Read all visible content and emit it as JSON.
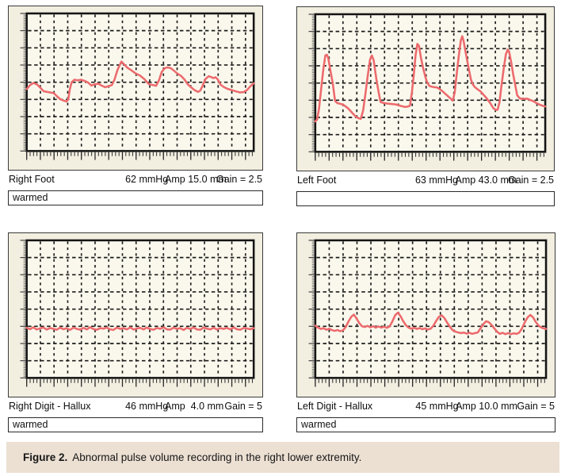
{
  "figure": {
    "caption_label": "Figure 2.",
    "caption_text": "Abnormal pulse volume recording in the right lower extremity.",
    "caption_bg": "#ece0d3"
  },
  "colors": {
    "trace": "#ec6a6d",
    "panel_bg": "#f2efe1",
    "plot_bg": "#faf8ec",
    "grid": "#1c1c1c"
  },
  "chart_data": [
    {
      "type": "line",
      "id": "right-foot",
      "title": "Right Foot",
      "readings": {
        "pressure": "62 mmHg",
        "amp": "Amp 15.0 mm",
        "gain": "Gain = 2.5"
      },
      "note": "warmed",
      "grid": {
        "v_divisions": 16,
        "h_divisions": 8,
        "style": "dashed"
      },
      "units": {
        "x": "percent of sweep width",
        "y": "percent of plot height from top"
      },
      "points": [
        [
          0,
          55
        ],
        [
          1.5,
          52
        ],
        [
          3,
          50.5
        ],
        [
          4.5,
          51.5
        ],
        [
          6,
          54
        ],
        [
          7.5,
          56.5
        ],
        [
          9,
          57
        ],
        [
          10.5,
          57.5
        ],
        [
          12,
          58
        ],
        [
          13.5,
          60.5
        ],
        [
          15,
          62.5
        ],
        [
          16.5,
          63.5
        ],
        [
          17.5,
          64
        ],
        [
          18.3,
          62.5
        ],
        [
          19,
          55
        ],
        [
          19.8,
          50
        ],
        [
          21,
          48.2
        ],
        [
          22.5,
          48.6
        ],
        [
          24,
          48.2
        ],
        [
          25.5,
          49
        ],
        [
          27,
          50.2
        ],
        [
          28.5,
          52.4
        ],
        [
          30,
          51.6
        ],
        [
          31.5,
          51
        ],
        [
          33,
          52.4
        ],
        [
          34.5,
          53.6
        ],
        [
          36,
          53
        ],
        [
          37.5,
          52
        ],
        [
          38.7,
          48
        ],
        [
          40,
          41
        ],
        [
          41.7,
          35
        ],
        [
          43,
          37.2
        ],
        [
          44.5,
          39.6
        ],
        [
          46,
          41.2
        ],
        [
          48,
          43.6
        ],
        [
          50,
          45.2
        ],
        [
          52,
          48
        ],
        [
          53.8,
          51.4
        ],
        [
          55.5,
          52
        ],
        [
          57,
          52.6
        ],
        [
          58.3,
          48.5
        ],
        [
          59.5,
          42.5
        ],
        [
          60.8,
          39.8
        ],
        [
          62.1,
          39.2
        ],
        [
          63.5,
          39.8
        ],
        [
          65,
          41.8
        ],
        [
          66.5,
          43.8
        ],
        [
          68,
          45.4
        ],
        [
          69.5,
          48
        ],
        [
          71,
          51.6
        ],
        [
          72.5,
          53.8
        ],
        [
          74,
          55.8
        ],
        [
          75.5,
          57
        ],
        [
          76.5,
          56
        ],
        [
          77.5,
          52.6
        ],
        [
          78.8,
          47.6
        ],
        [
          80.2,
          45.6
        ],
        [
          81.2,
          46.2
        ],
        [
          82.2,
          47
        ],
        [
          83.2,
          46.4
        ],
        [
          84.2,
          48
        ],
        [
          85.4,
          51.8
        ],
        [
          86.8,
          53.4
        ],
        [
          88.2,
          54.6
        ],
        [
          89.6,
          55.4
        ],
        [
          91,
          56
        ],
        [
          92.5,
          56.8
        ],
        [
          94,
          57.4
        ],
        [
          95.5,
          57.2
        ],
        [
          97,
          55.8
        ],
        [
          98.5,
          53
        ],
        [
          100,
          50.8
        ]
      ]
    },
    {
      "type": "line",
      "id": "left-foot",
      "title": "Left Foot",
      "readings": {
        "pressure": "63 mmHg",
        "amp": "Amp 43.0 mm",
        "gain": "Gain = 2.5"
      },
      "note": "",
      "grid": {
        "v_divisions": 16,
        "h_divisions": 8,
        "style": "dashed"
      },
      "units": {
        "x": "percent of sweep width",
        "y": "percent of plot height from top"
      },
      "points": [
        [
          0,
          78
        ],
        [
          0.8,
          76.5
        ],
        [
          1.6,
          69
        ],
        [
          2.5,
          55
        ],
        [
          3.5,
          40
        ],
        [
          4.4,
          30
        ],
        [
          5,
          29.4
        ],
        [
          5.6,
          31.5
        ],
        [
          6.6,
          41
        ],
        [
          7.6,
          50
        ],
        [
          8.6,
          63
        ],
        [
          9.6,
          64.6
        ],
        [
          10.6,
          65
        ],
        [
          12,
          65.6
        ],
        [
          13.2,
          67
        ],
        [
          14.4,
          68.6
        ],
        [
          16,
          71.5
        ],
        [
          17.6,
          74.4
        ],
        [
          18.8,
          75.6
        ],
        [
          19.8,
          76
        ],
        [
          20.8,
          70
        ],
        [
          21.8,
          58
        ],
        [
          22.8,
          45
        ],
        [
          23.8,
          33
        ],
        [
          24.6,
          30
        ],
        [
          25.4,
          33.5
        ],
        [
          26.6,
          47.5
        ],
        [
          27.6,
          57
        ],
        [
          28.4,
          63.8
        ],
        [
          30,
          64.6
        ],
        [
          31.6,
          65
        ],
        [
          33.2,
          65.2
        ],
        [
          35.2,
          65.6
        ],
        [
          37,
          66.6
        ],
        [
          39.2,
          67.4
        ],
        [
          40.4,
          67
        ],
        [
          41.2,
          66.4
        ],
        [
          42,
          57
        ],
        [
          42.8,
          45
        ],
        [
          43.6,
          30
        ],
        [
          44.4,
          21.6
        ],
        [
          45.1,
          23
        ],
        [
          45.9,
          31
        ],
        [
          46.8,
          38.4
        ],
        [
          47.8,
          45
        ],
        [
          48.6,
          49.4
        ],
        [
          49.6,
          52
        ],
        [
          50.4,
          52.6
        ],
        [
          51.6,
          53
        ],
        [
          53,
          53.2
        ],
        [
          54.6,
          55
        ],
        [
          56,
          57
        ],
        [
          57.6,
          59.4
        ],
        [
          59,
          61.6
        ],
        [
          59.8,
          62.8
        ],
        [
          60.6,
          57
        ],
        [
          61.4,
          45
        ],
        [
          62.4,
          30
        ],
        [
          63.3,
          19
        ],
        [
          63.9,
          16
        ],
        [
          64.5,
          19.4
        ],
        [
          65.3,
          27
        ],
        [
          66,
          33
        ],
        [
          66.9,
          41
        ],
        [
          67.7,
          47.4
        ],
        [
          68.5,
          51
        ],
        [
          69.4,
          53
        ],
        [
          70.6,
          54.6
        ],
        [
          71.8,
          56
        ],
        [
          73.1,
          58.4
        ],
        [
          74.5,
          61
        ],
        [
          76,
          64.4
        ],
        [
          77.5,
          68.4
        ],
        [
          78.6,
          69.6
        ],
        [
          79.3,
          69.4
        ],
        [
          80.1,
          64
        ],
        [
          80.9,
          53
        ],
        [
          81.9,
          40
        ],
        [
          82.9,
          29
        ],
        [
          83.7,
          25.6
        ],
        [
          84.4,
          28
        ],
        [
          85.3,
          36
        ],
        [
          86.1,
          44
        ],
        [
          86.9,
          51
        ],
        [
          87.8,
          58.8
        ],
        [
          88.8,
          61
        ],
        [
          90,
          61.6
        ],
        [
          92.2,
          61.4
        ],
        [
          93.6,
          62.4
        ],
        [
          94.6,
          63
        ],
        [
          96,
          64.4
        ],
        [
          97.4,
          65.6
        ],
        [
          98.6,
          66.4
        ],
        [
          100,
          67
        ]
      ]
    },
    {
      "type": "line",
      "id": "right-digit-hallux",
      "title": "Right Digit - Hallux",
      "readings": {
        "pressure": "46 mmHg",
        "amp": "Amp  4.0 mm",
        "gain": "Gain = 5"
      },
      "note": "warmed",
      "grid": {
        "v_divisions": 16,
        "h_divisions": 8,
        "style": "dashed"
      },
      "units": {
        "x": "percent of sweep width",
        "y": "percent of plot height from top"
      },
      "points": [
        [
          0,
          63.6
        ],
        [
          1.5,
          64.6
        ],
        [
          2.9,
          63.2
        ],
        [
          4.4,
          64.8
        ],
        [
          5.9,
          64.0
        ],
        [
          7.4,
          63.4
        ],
        [
          8.8,
          64.9
        ],
        [
          10.3,
          63.7
        ],
        [
          11.8,
          64.3
        ],
        [
          13.2,
          65.0
        ],
        [
          14.7,
          63.5
        ],
        [
          16.2,
          64.6
        ],
        [
          17.6,
          63.9
        ],
        [
          19.1,
          65.1
        ],
        [
          20.6,
          63.4
        ],
        [
          22.1,
          64.4
        ],
        [
          23.5,
          64.9
        ],
        [
          25,
          63.6
        ],
        [
          26.5,
          64.7
        ],
        [
          27.9,
          63.2
        ],
        [
          29.4,
          64.5
        ],
        [
          30.9,
          65.0
        ],
        [
          32.4,
          63.8
        ],
        [
          33.8,
          64.2
        ],
        [
          35.3,
          63.4
        ],
        [
          36.8,
          64.8
        ],
        [
          38.2,
          65.1
        ],
        [
          39.7,
          63.5
        ],
        [
          41.2,
          64.4
        ],
        [
          42.6,
          63.8
        ],
        [
          44.1,
          64.7
        ],
        [
          45.6,
          63.3
        ],
        [
          47.1,
          64.9
        ],
        [
          48.5,
          64.1
        ],
        [
          50,
          63.6
        ],
        [
          51.5,
          64.8
        ],
        [
          52.9,
          63.4
        ],
        [
          54.4,
          64.5
        ],
        [
          55.9,
          65.0
        ],
        [
          57.4,
          63.7
        ],
        [
          58.8,
          64.3
        ],
        [
          60.3,
          63.2
        ],
        [
          61.8,
          64.7
        ],
        [
          63.2,
          64.9
        ],
        [
          64.7,
          63.5
        ],
        [
          66.2,
          64.4
        ],
        [
          67.6,
          63.8
        ],
        [
          69.1,
          65.1
        ],
        [
          70.6,
          63.6
        ],
        [
          72.1,
          64.5
        ],
        [
          73.5,
          63.3
        ],
        [
          75,
          64.8
        ],
        [
          76.5,
          65.0
        ],
        [
          77.9,
          63.4
        ],
        [
          79.4,
          64.2
        ],
        [
          80.9,
          64.7
        ],
        [
          82.4,
          63.5
        ],
        [
          83.8,
          64.9
        ],
        [
          85.3,
          63.8
        ],
        [
          86.8,
          64.4
        ],
        [
          88.2,
          63.6
        ],
        [
          89.7,
          64.8
        ],
        [
          91.2,
          63.3
        ],
        [
          92.6,
          64.6
        ],
        [
          94.1,
          65.0
        ],
        [
          95.6,
          63.7
        ],
        [
          97.1,
          64.1
        ],
        [
          98.5,
          64.6
        ],
        [
          100,
          63.8
        ]
      ]
    },
    {
      "type": "line",
      "id": "left-digit-hallux",
      "title": "Left Digit - Hallux",
      "readings": {
        "pressure": "45 mmHg",
        "amp": "Amp 10.0 mm",
        "gain": "Gain = 5"
      },
      "note": "warmed",
      "grid": {
        "v_divisions": 16,
        "h_divisions": 8,
        "style": "dashed"
      },
      "units": {
        "x": "percent of sweep width",
        "y": "percent of plot height from top"
      },
      "points": [
        [
          0,
          62
        ],
        [
          1.2,
          63.4
        ],
        [
          2.4,
          64.4
        ],
        [
          3.6,
          63.8
        ],
        [
          4.8,
          65
        ],
        [
          6,
          64.2
        ],
        [
          7.2,
          65.2
        ],
        [
          8.4,
          65.8
        ],
        [
          9.6,
          65.2
        ],
        [
          10.8,
          66
        ],
        [
          12,
          65.4
        ],
        [
          13.2,
          63
        ],
        [
          14.4,
          59
        ],
        [
          15.6,
          55.5
        ],
        [
          16.7,
          54
        ],
        [
          17.8,
          56.5
        ],
        [
          19,
          60
        ],
        [
          20.2,
          62.4
        ],
        [
          21.4,
          63
        ],
        [
          22.6,
          62.2
        ],
        [
          23.8,
          63.2
        ],
        [
          25,
          62.4
        ],
        [
          26.2,
          63.4
        ],
        [
          27.4,
          62.6
        ],
        [
          28.6,
          63.4
        ],
        [
          29.8,
          62.8
        ],
        [
          31,
          63.6
        ],
        [
          32.2,
          62.6
        ],
        [
          33.4,
          59
        ],
        [
          34.6,
          54.5
        ],
        [
          35.8,
          52.5
        ],
        [
          36.9,
          55
        ],
        [
          38,
          58.5
        ],
        [
          39.2,
          61.5
        ],
        [
          40.4,
          63.4
        ],
        [
          41.6,
          64.2
        ],
        [
          42.8,
          63.6
        ],
        [
          44,
          64.4
        ],
        [
          45.2,
          63.8
        ],
        [
          46.4,
          64.6
        ],
        [
          47.6,
          64
        ],
        [
          48.8,
          64.8
        ],
        [
          50,
          64.2
        ],
        [
          51.2,
          62
        ],
        [
          52.4,
          58.5
        ],
        [
          53.6,
          55.5
        ],
        [
          54.8,
          54.5
        ],
        [
          56,
          56.5
        ],
        [
          57.2,
          60
        ],
        [
          58.4,
          63
        ],
        [
          59.6,
          65.4
        ],
        [
          60.8,
          66.4
        ],
        [
          62,
          67
        ],
        [
          63.2,
          67.4
        ],
        [
          64.4,
          67
        ],
        [
          65.6,
          67.8
        ],
        [
          66.8,
          67.2
        ],
        [
          68,
          68
        ],
        [
          69.2,
          67.4
        ],
        [
          70.4,
          67
        ],
        [
          71.6,
          64
        ],
        [
          72.8,
          61
        ],
        [
          74,
          58.8
        ],
        [
          75.2,
          59.5
        ],
        [
          76.4,
          61.5
        ],
        [
          77.6,
          64
        ],
        [
          78.8,
          66.4
        ],
        [
          80,
          68
        ],
        [
          81.2,
          67.2
        ],
        [
          82.4,
          68.2
        ],
        [
          83.6,
          67.4
        ],
        [
          84.8,
          68.2
        ],
        [
          86,
          67.6
        ],
        [
          87.2,
          68
        ],
        [
          88.4,
          67
        ],
        [
          89.6,
          64
        ],
        [
          90.8,
          59.5
        ],
        [
          92,
          56
        ],
        [
          93.2,
          54.2
        ],
        [
          94.4,
          56
        ],
        [
          95.6,
          59.5
        ],
        [
          96.8,
          62
        ],
        [
          98,
          63.4
        ],
        [
          99,
          64
        ],
        [
          100,
          64.4
        ]
      ]
    }
  ]
}
